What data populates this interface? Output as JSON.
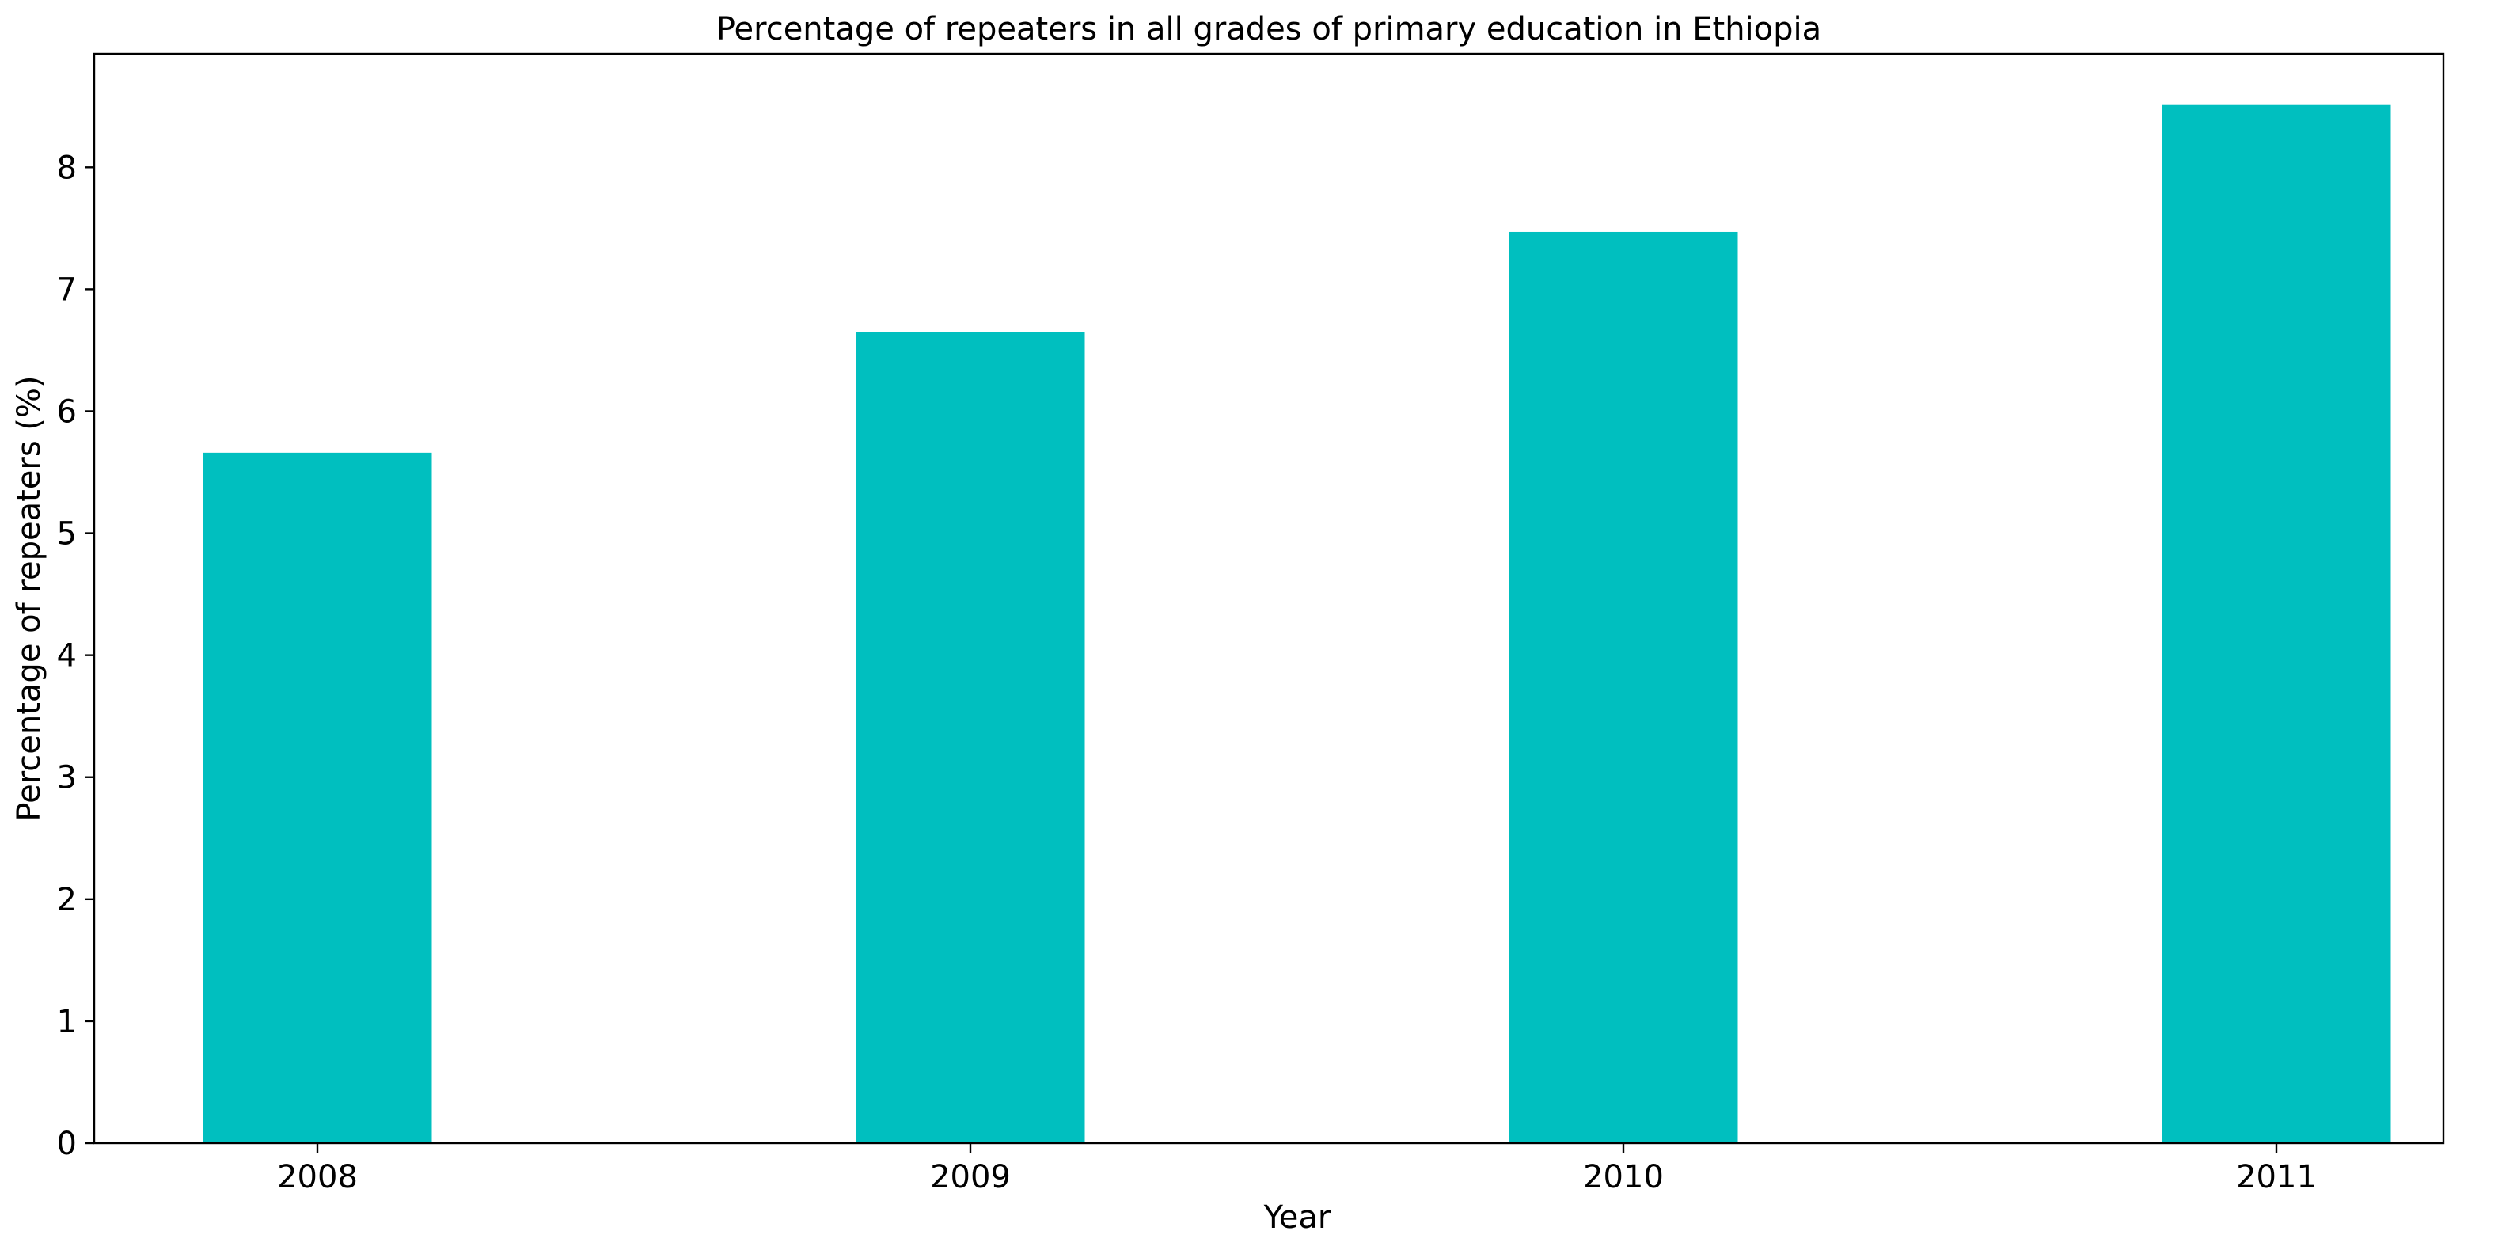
{
  "chart_data": {
    "type": "bar",
    "title": "Percentage of repeaters in all grades of primary education in Ethiopia",
    "xlabel": "Year",
    "ylabel": "Percentage of repeaters (%)",
    "categories": [
      "2008",
      "2009",
      "2010",
      "2011"
    ],
    "values": [
      5.66,
      6.65,
      7.47,
      8.51
    ],
    "ylim": [
      0,
      8.93
    ],
    "yticks": [
      0,
      1,
      2,
      3,
      4,
      5,
      6,
      7,
      8
    ],
    "grid": false,
    "bar_color": "#00bfbf"
  }
}
